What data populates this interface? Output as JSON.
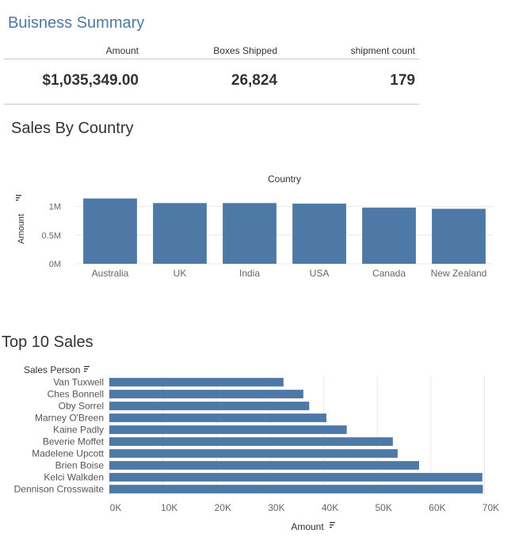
{
  "summary": {
    "title": "Buisness Summary",
    "kpis": [
      {
        "label": "Amount",
        "value": "$1,035,349.00"
      },
      {
        "label": "Boxes Shipped",
        "value": "26,824"
      },
      {
        "label": "shipment count",
        "value": "179"
      }
    ]
  },
  "sections": {
    "country_title": "Sales By Country",
    "top10_title": "Top 10 Sales"
  },
  "colors": {
    "bar": "#4e79a7",
    "title_accent": "#4e79a7",
    "grid": "#e8e8e8"
  },
  "chart_data": [
    {
      "type": "bar",
      "orientation": "vertical",
      "title": "Sales By Country",
      "xlabel": "Country",
      "ylabel": "Amount",
      "categories": [
        "Australia",
        "UK",
        "India",
        "USA",
        "Canada",
        "New Zealand"
      ],
      "values": [
        1140000,
        1060000,
        1060000,
        1050000,
        980000,
        960000
      ],
      "ylim": [
        0,
        1300000
      ],
      "yticks": [
        0,
        500000,
        1000000
      ],
      "yticklabels": [
        "0M",
        "0.5M",
        "1M"
      ],
      "grid": true
    },
    {
      "type": "bar",
      "orientation": "horizontal",
      "title": "Top 10 Sales",
      "ylabel": "Sales Person",
      "xlabel": "Amount",
      "categories": [
        "Van Tuxwell",
        "Ches Bonnell",
        "Oby Sorrel",
        "Marney O'Breen",
        "Kaine Padly",
        "Beverie Moffet",
        "Madelene Upcott",
        "Brien Boise",
        "Kelci Walkden",
        "Dennison Crosswaite"
      ],
      "values": [
        32500,
        36200,
        37300,
        40500,
        44300,
        52900,
        53800,
        57800,
        69600,
        69700
      ],
      "xlim": [
        0,
        72000
      ],
      "xticks": [
        0,
        10000,
        20000,
        30000,
        40000,
        50000,
        60000,
        70000
      ],
      "xticklabels": [
        "0K",
        "10K",
        "20K",
        "30K",
        "40K",
        "50K",
        "60K",
        "70K"
      ],
      "grid": true
    }
  ]
}
